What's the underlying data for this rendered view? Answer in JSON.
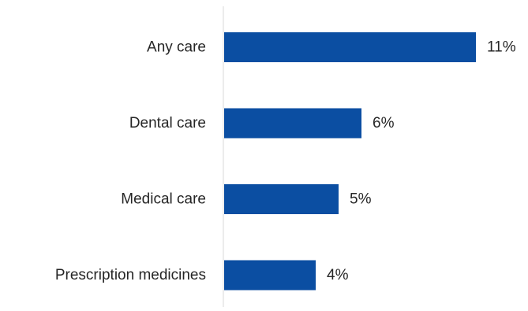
{
  "chart_data": {
    "type": "bar",
    "orientation": "horizontal",
    "categories": [
      "Any care",
      "Dental care",
      "Medical care",
      "Prescription medicines"
    ],
    "values": [
      11,
      6,
      5,
      4
    ],
    "value_labels": [
      "11%",
      "6%",
      "5%",
      "4%"
    ],
    "unit": "%",
    "xlim": [
      0,
      11
    ],
    "grid": false,
    "legend": "none",
    "bar_color": "#0B4EA2",
    "axis_color": "#D9D9D9"
  }
}
